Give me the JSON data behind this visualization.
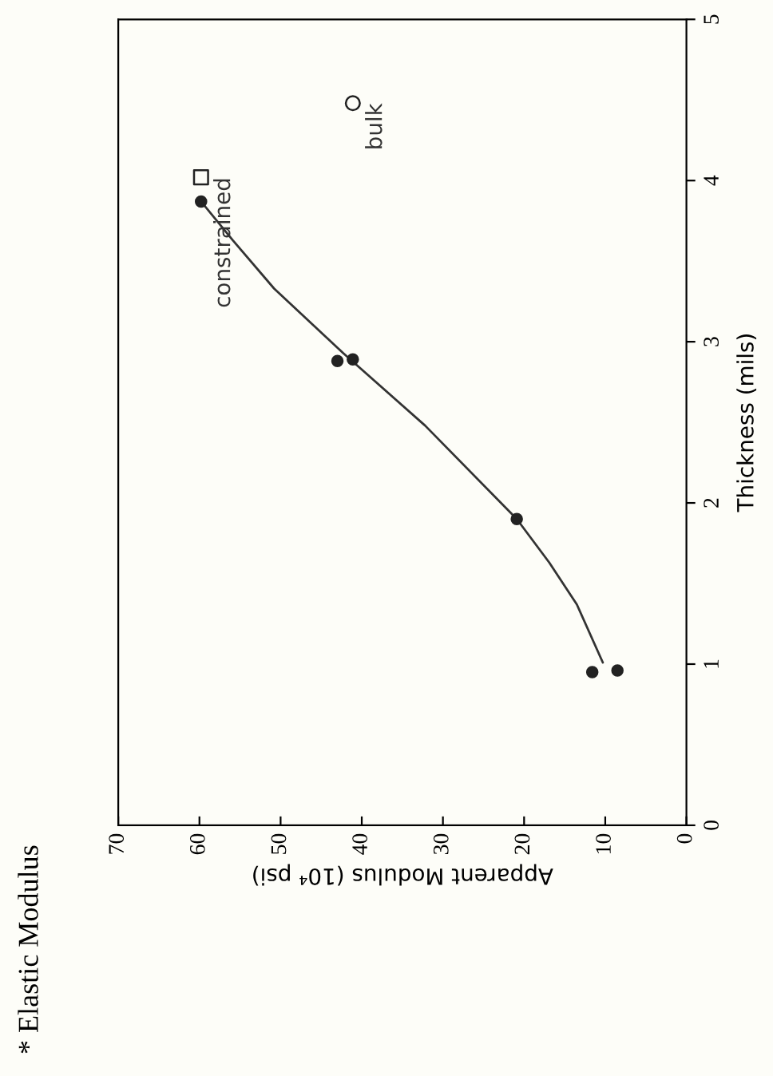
{
  "chart_data": {
    "type": "scatter",
    "title": "* Elastic Modulus",
    "xlabel": "Apparent Modulus (10⁴ psi)",
    "ylabel": "Thickness (mils)",
    "xlim": [
      70,
      0
    ],
    "xticks": [
      0,
      10,
      20,
      30,
      40,
      50,
      60,
      70
    ],
    "ylim": [
      0,
      5
    ],
    "yticks": [
      0,
      1,
      2,
      3,
      4,
      5
    ],
    "grid": false,
    "legend": false,
    "series": [
      {
        "type": "line",
        "color": "#333333",
        "marker": "none",
        "line_style": "solid",
        "x": [
          10.3,
          13.5,
          16.9,
          20.9,
          32.2,
          42.3,
          50.8,
          55.9,
          59.8
        ],
        "values": [
          1.01,
          1.37,
          1.63,
          1.9,
          2.48,
          2.93,
          3.33,
          3.63,
          3.87
        ]
      },
      {
        "color": "#222222",
        "marker": "circle",
        "x": [
          11.6,
          8.5,
          20.9,
          43.0,
          41.1,
          59.8
        ],
        "values": [
          0.95,
          0.96,
          1.9,
          2.88,
          2.89,
          3.87
        ]
      },
      {
        "name": "constrained",
        "color": "#222222",
        "marker": "square",
        "x": [
          59.8
        ],
        "values": [
          4.02
        ]
      },
      {
        "name": "bulk",
        "color": "#222222",
        "marker": "circle",
        "x": [
          41.1
        ],
        "values": [
          4.48
        ]
      }
    ]
  }
}
